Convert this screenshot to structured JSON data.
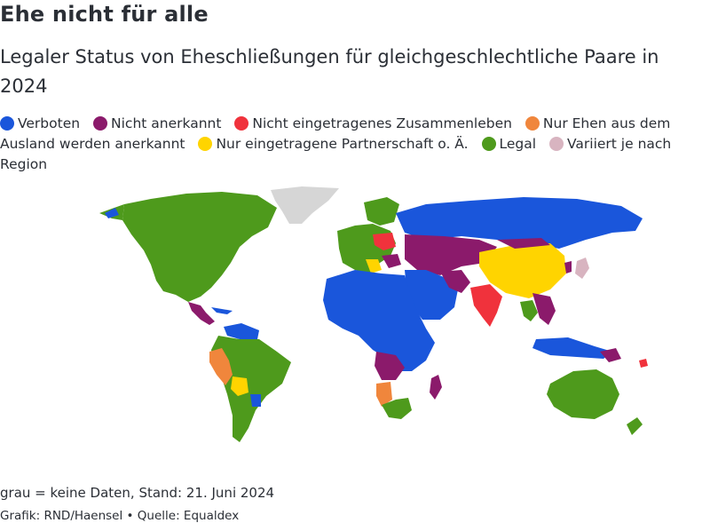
{
  "title": "Ehe nicht für alle",
  "subtitle": "Legaler Status von Eheschließungen für gleichgeschlechtliche Paare in 2024",
  "legend": [
    {
      "label": "Verboten",
      "color": "#1a56db"
    },
    {
      "label": "Nicht anerkannt",
      "color": "#8b1a6b"
    },
    {
      "label": "Nicht eingetragenes Zusammenleben",
      "color": "#f0323c"
    },
    {
      "label": "Nur Ehen aus dem Ausland werden anerkannt",
      "color": "#f0863c"
    },
    {
      "label": "Nur eingetragene Partnerschaft o. Ä.",
      "color": "#ffd400"
    },
    {
      "label": "Legal",
      "color": "#4e9a1c"
    },
    {
      "label": "Variiert je nach Region",
      "color": "#d8b4c0"
    }
  ],
  "no_data_color": "#d6d6d6",
  "note": "grau = keine Daten, Stand: 21. Juni 2024",
  "source": "Grafik: RND/Haensel • Quelle: Equaldex"
}
